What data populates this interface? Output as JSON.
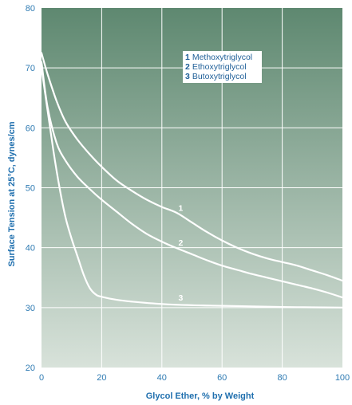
{
  "chart_data": {
    "type": "line",
    "title": "",
    "xlabel": "Glycol Ether, % by Weight",
    "ylabel": "Surface Tension at 25°C, dynes/cm",
    "xlim": [
      0,
      100
    ],
    "ylim": [
      20,
      80
    ],
    "x_ticks": [
      "0",
      "20",
      "40",
      "60",
      "80",
      "100"
    ],
    "y_ticks": [
      "20",
      "30",
      "40",
      "50",
      "60",
      "70",
      "80"
    ],
    "grid": true,
    "legend_position": "top-right",
    "legend": [
      {
        "number": "1",
        "name": "Methoxytriglycol"
      },
      {
        "number": "2",
        "name": "Ethoxytriglycol"
      },
      {
        "number": "3",
        "name": "Butoxytriglycol"
      }
    ],
    "series": [
      {
        "label": "1",
        "x": [
          0,
          2,
          5,
          8,
          12,
          16,
          20,
          25,
          30,
          35,
          40,
          45,
          50,
          55,
          60,
          65,
          70,
          75,
          80,
          85,
          90,
          95,
          100
        ],
        "y": [
          72.5,
          69,
          64.5,
          61,
          58,
          55.6,
          53.5,
          51.2,
          49.5,
          48,
          46.8,
          45.8,
          44.2,
          42.6,
          41.2,
          40,
          39,
          38.2,
          37.6,
          37,
          36.2,
          35.4,
          34.5
        ]
      },
      {
        "label": "2",
        "x": [
          0,
          2,
          5,
          8,
          12,
          16,
          20,
          25,
          30,
          35,
          40,
          45,
          50,
          55,
          60,
          65,
          70,
          75,
          80,
          85,
          90,
          95,
          100
        ],
        "y": [
          71,
          63.5,
          57.5,
          54.5,
          51.8,
          49.8,
          48,
          46,
          44,
          42.3,
          41,
          39.9,
          38.9,
          37.9,
          37,
          36.3,
          35.6,
          35,
          34.4,
          33.8,
          33.2,
          32.5,
          31.7
        ]
      },
      {
        "label": "3",
        "x": [
          0,
          2,
          4,
          6,
          8,
          10,
          12,
          14,
          16,
          18,
          20,
          25,
          30,
          40,
          50,
          60,
          70,
          80,
          90,
          100
        ],
        "y": [
          70,
          63,
          56,
          50,
          45,
          41.5,
          38.5,
          35.5,
          33.3,
          32.2,
          31.8,
          31.3,
          31,
          30.6,
          30.4,
          30.3,
          30.2,
          30.1,
          30.05,
          30
        ]
      }
    ],
    "colors": {
      "gradient_top": "#5e8870",
      "gradient_bottom": "#d8e2da",
      "grid": "#ffffff",
      "curve": "#ffffff",
      "legend_background": "#ffffff",
      "legend_text": "#1f5f98",
      "tick_text": "#2f7bb3",
      "axis_title": "#1f6fae"
    }
  }
}
